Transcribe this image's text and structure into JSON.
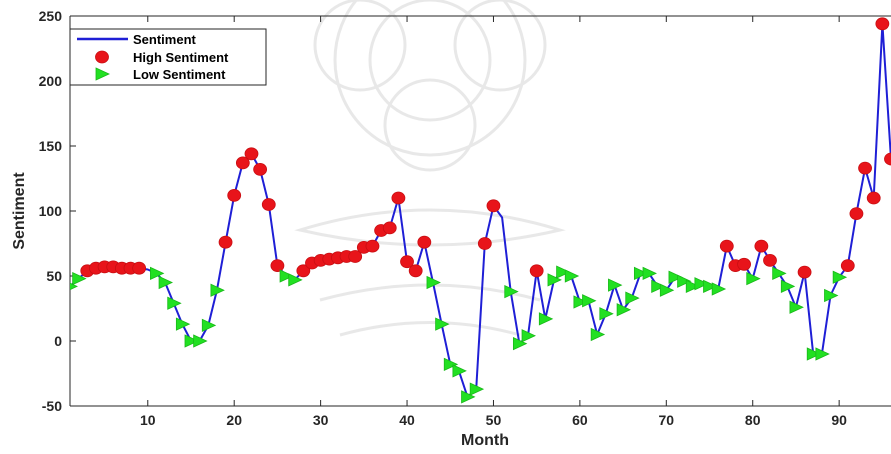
{
  "chart_data": {
    "type": "line",
    "xlabel": "Month",
    "ylabel": "Sentiment",
    "xlim": [
      1,
      96
    ],
    "ylim": [
      -50,
      250
    ],
    "xticks": [
      10,
      20,
      30,
      40,
      50,
      60,
      70,
      80,
      90
    ],
    "yticks": [
      -50,
      0,
      50,
      100,
      150,
      200,
      250
    ],
    "grid": false,
    "legend_position": "top-left",
    "colors": {
      "line": "#1f1fd6",
      "high": "#e8141a",
      "low": "#22e022"
    },
    "series": [
      {
        "name": "Sentiment",
        "marker": "line"
      },
      {
        "name": "High Sentiment",
        "marker": "circle"
      },
      {
        "name": "Low Sentiment",
        "marker": "triangle-right"
      }
    ],
    "x": [
      1,
      2,
      3,
      4,
      5,
      6,
      7,
      8,
      9,
      10,
      11,
      12,
      13,
      14,
      15,
      16,
      17,
      18,
      19,
      20,
      21,
      22,
      23,
      24,
      25,
      26,
      27,
      28,
      29,
      30,
      31,
      32,
      33,
      34,
      35,
      36,
      37,
      38,
      39,
      40,
      41,
      42,
      43,
      44,
      45,
      46,
      47,
      48,
      49,
      50,
      51,
      52,
      53,
      54,
      55,
      56,
      57,
      58,
      59,
      60,
      61,
      62,
      63,
      64,
      65,
      66,
      67,
      68,
      69,
      70,
      71,
      72,
      73,
      74,
      75,
      76,
      77,
      78,
      79,
      80,
      81,
      82,
      83,
      84,
      85,
      86,
      87,
      88,
      89,
      90,
      91,
      92,
      93,
      94,
      95,
      96
    ],
    "y": [
      42,
      48,
      54,
      56,
      57,
      57,
      56,
      56,
      56,
      55,
      52,
      45,
      29,
      13,
      0,
      0,
      12,
      39,
      76,
      112,
      137,
      144,
      132,
      105,
      58,
      50,
      47,
      54,
      60,
      62,
      63,
      64,
      65,
      65,
      72,
      73,
      85,
      87,
      110,
      61,
      54,
      76,
      45,
      13,
      -18,
      -23,
      -43,
      -37,
      75,
      104,
      95,
      38,
      -2,
      4,
      54,
      17,
      47,
      53,
      50,
      30,
      31,
      5,
      21,
      43,
      24,
      33,
      52,
      52,
      42,
      39,
      49,
      46,
      42,
      44,
      42,
      40,
      73,
      58,
      59,
      48,
      73,
      62,
      52,
      42,
      26,
      53,
      -10,
      -10,
      35,
      49,
      58,
      98,
      133,
      110,
      244,
      140
    ],
    "high_indices": [
      3,
      4,
      5,
      6,
      7,
      8,
      9,
      19,
      20,
      21,
      22,
      23,
      24,
      25,
      28,
      29,
      30,
      31,
      32,
      33,
      34,
      35,
      36,
      37,
      38,
      39,
      40,
      41,
      42,
      49,
      50,
      55,
      77,
      78,
      79,
      81,
      82,
      86,
      91,
      92,
      93,
      94,
      95,
      96
    ],
    "low_indices": [
      1,
      2,
      11,
      12,
      13,
      14,
      15,
      16,
      17,
      18,
      26,
      27,
      43,
      44,
      45,
      46,
      47,
      48,
      52,
      53,
      54,
      56,
      57,
      58,
      59,
      60,
      61,
      62,
      63,
      64,
      65,
      66,
      67,
      68,
      69,
      70,
      71,
      72,
      73,
      74,
      75,
      76,
      80,
      83,
      84,
      85,
      87,
      88,
      89,
      90
    ]
  }
}
